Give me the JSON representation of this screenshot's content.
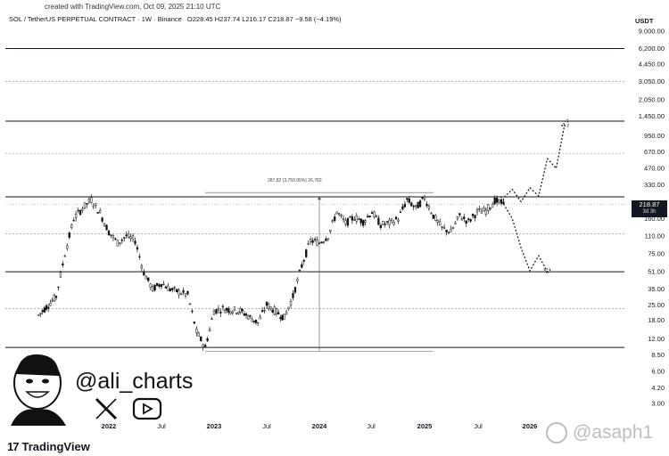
{
  "header": {
    "created": "created with TradingView.com, Oct 09, 2025 21:10 UTC",
    "symbol": "SOL / TetherUS PERPETUAL CONTRACT · 1W · Binance",
    "ohlc": "O228.45 H237.74 L216.17 C218.87 −9.58 (−4.19%)",
    "currency": "USDT"
  },
  "price_tag": {
    "price": "218.87",
    "countdown": "3d 3h"
  },
  "measure_label": "287.82 (3,750.95%) 26,782",
  "branding": {
    "handle": "@ali_charts",
    "logo": "TradingView",
    "logo_mark": "17",
    "watermark": "@asaph1",
    "social_icons": [
      "x-icon",
      "youtube-icon"
    ]
  },
  "colors": {
    "candle": "#111111",
    "line": "#131722",
    "dashed": "#888888",
    "watermark": "#bdbdbd"
  },
  "chart_data": {
    "type": "candlestick",
    "title": "SOL / TetherUS PERPETUAL CONTRACT · 1W · Binance",
    "xlabel": "",
    "ylabel": "USDT",
    "y_scale": "log",
    "y_ticks": [
      "9,000.00",
      "6,200.00",
      "4,450.00",
      "3,050.00",
      "2,050.00",
      "1,450.00",
      "950.00",
      "670.00",
      "470.00",
      "330.00",
      "160.00",
      "110.00",
      "75.00",
      "51.00",
      "35.00",
      "25.00",
      "18.00",
      "12.00",
      "8.50",
      "6.00",
      "4.20",
      "3.00"
    ],
    "x_ticks": [
      {
        "label": "2022",
        "year": true
      },
      {
        "label": "Jul",
        "year": false
      },
      {
        "label": "2023",
        "year": true
      },
      {
        "label": "Jul",
        "year": false
      },
      {
        "label": "2024",
        "year": true
      },
      {
        "label": "Jul",
        "year": false
      },
      {
        "label": "2025",
        "year": true
      },
      {
        "label": "Jul",
        "year": false
      },
      {
        "label": "2026",
        "year": true
      }
    ],
    "horizontal_levels": [
      {
        "price": 6200,
        "style": "solid"
      },
      {
        "price": 3050,
        "style": "dashed"
      },
      {
        "price": 1300,
        "style": "solid"
      },
      {
        "price": 650,
        "style": "dashed"
      },
      {
        "price": 255,
        "style": "solid"
      },
      {
        "price": 115,
        "style": "dashed"
      },
      {
        "price": 51,
        "style": "solid"
      },
      {
        "price": 23,
        "style": "dashed"
      },
      {
        "price": 10,
        "style": "solid"
      }
    ],
    "price_path": [
      [
        "2021-05",
        20
      ],
      [
        "2021-07",
        30
      ],
      [
        "2021-08",
        75
      ],
      [
        "2021-09",
        160
      ],
      [
        "2021-10",
        200
      ],
      [
        "2021-11",
        240
      ],
      [
        "2021-12",
        180
      ],
      [
        "2022-01",
        120
      ],
      [
        "2022-02",
        95
      ],
      [
        "2022-03",
        110
      ],
      [
        "2022-04",
        100
      ],
      [
        "2022-05",
        50
      ],
      [
        "2022-06",
        35
      ],
      [
        "2022-07",
        40
      ],
      [
        "2022-08",
        35
      ],
      [
        "2022-09",
        33
      ],
      [
        "2022-10",
        31
      ],
      [
        "2022-11",
        14
      ],
      [
        "2022-12",
        10
      ],
      [
        "2023-01",
        22
      ],
      [
        "2023-02",
        23
      ],
      [
        "2023-04",
        22
      ],
      [
        "2023-06",
        17
      ],
      [
        "2023-07",
        25
      ],
      [
        "2023-09",
        19
      ],
      [
        "2023-10",
        30
      ],
      [
        "2023-11",
        58
      ],
      [
        "2023-12",
        100
      ],
      [
        "2024-01",
        95
      ],
      [
        "2024-02",
        110
      ],
      [
        "2024-03",
        185
      ],
      [
        "2024-04",
        145
      ],
      [
        "2024-05",
        165
      ],
      [
        "2024-06",
        150
      ],
      [
        "2024-07",
        185
      ],
      [
        "2024-08",
        140
      ],
      [
        "2024-09",
        145
      ],
      [
        "2024-10",
        160
      ],
      [
        "2024-11",
        240
      ],
      [
        "2024-12",
        200
      ],
      [
        "2025-01",
        250
      ],
      [
        "2025-02",
        170
      ],
      [
        "2025-03",
        130
      ],
      [
        "2025-04",
        120
      ],
      [
        "2025-05",
        170
      ],
      [
        "2025-06",
        150
      ],
      [
        "2025-07",
        185
      ],
      [
        "2025-08",
        190
      ],
      [
        "2025-09",
        235
      ],
      [
        "2025-10",
        219
      ]
    ],
    "projection_up": [
      [
        "2025-10",
        219
      ],
      [
        "2025-10",
        250
      ],
      [
        "2025-11",
        300
      ],
      [
        "2025-12",
        230
      ],
      [
        "2026-01",
        310
      ],
      [
        "2026-02",
        260
      ],
      [
        "2026-03",
        580
      ],
      [
        "2026-04",
        470
      ],
      [
        "2026-05",
        1250
      ]
    ],
    "projection_down": [
      [
        "2025-10",
        219
      ],
      [
        "2025-11",
        160
      ],
      [
        "2025-12",
        85
      ],
      [
        "2026-01",
        52
      ],
      [
        "2026-02",
        72
      ],
      [
        "2026-03",
        51
      ]
    ],
    "last_price": 218.87
  }
}
